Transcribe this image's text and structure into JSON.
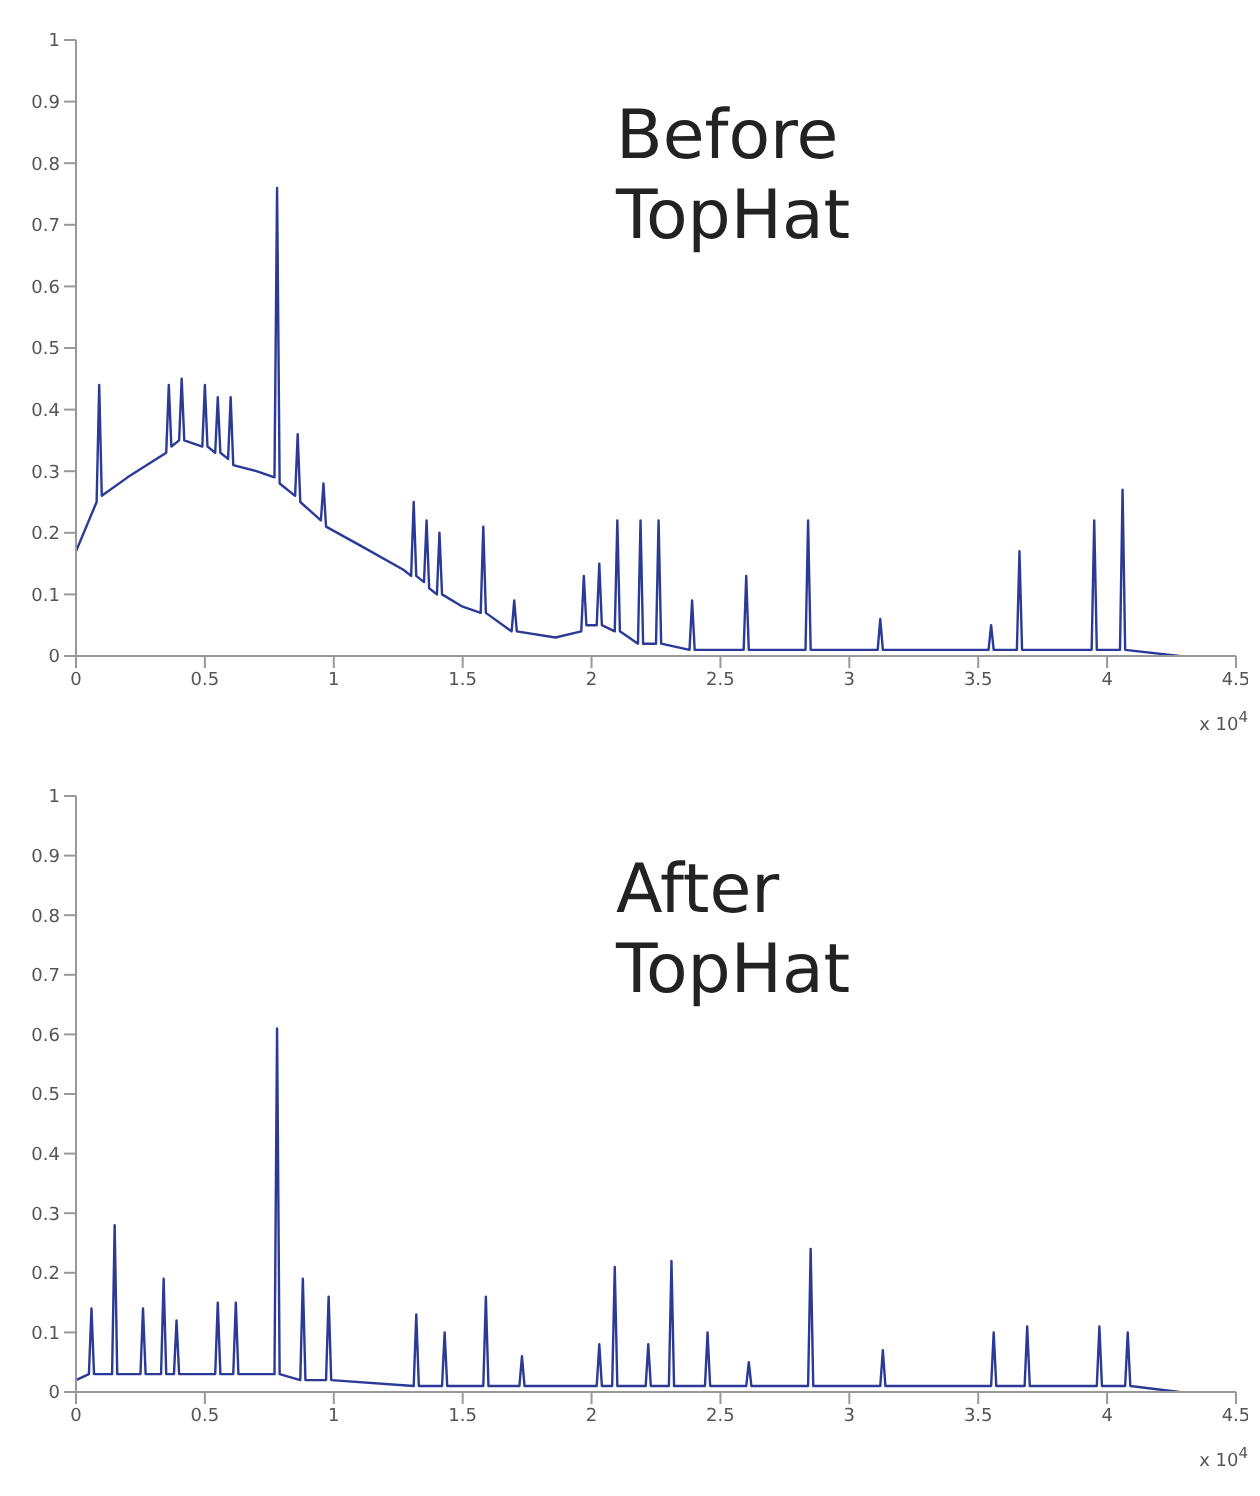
{
  "chart_data": [
    {
      "type": "line",
      "title": "Before TopHat",
      "xlim": [
        0,
        4.5
      ],
      "xticks": [
        0,
        0.5,
        1,
        1.5,
        2,
        2.5,
        3,
        3.5,
        4,
        4.5
      ],
      "ylim": [
        0,
        1
      ],
      "yticks": [
        0,
        0.1,
        0.2,
        0.3,
        0.4,
        0.5,
        0.6,
        0.7,
        0.8,
        0.9,
        1
      ],
      "annotations": [
        "x 10$^{4}$"
      ],
      "marker": "none",
      "grid": false,
      "legend": false,
      "series": [
        {
          "color": "#2b3a96",
          "x": [
            0,
            0.08,
            0.09,
            0.1,
            0.2,
            0.35,
            0.36,
            0.37,
            0.4,
            0.41,
            0.42,
            0.49,
            0.5,
            0.51,
            0.54,
            0.55,
            0.56,
            0.59,
            0.6,
            0.61,
            0.7,
            0.77,
            0.78,
            0.79,
            0.85,
            0.86,
            0.87,
            0.95,
            0.96,
            0.97,
            1.1,
            1.27,
            1.3,
            1.31,
            1.32,
            1.35,
            1.36,
            1.37,
            1.4,
            1.41,
            1.42,
            1.5,
            1.57,
            1.58,
            1.59,
            1.69,
            1.7,
            1.71,
            1.86,
            1.96,
            1.97,
            1.98,
            2.02,
            2.03,
            2.04,
            2.09,
            2.1,
            2.11,
            2.18,
            2.19,
            2.2,
            2.25,
            2.26,
            2.27,
            2.38,
            2.39,
            2.4,
            2.59,
            2.6,
            2.61,
            2.83,
            2.84,
            2.85,
            3.11,
            3.12,
            3.13,
            3.54,
            3.55,
            3.56,
            3.65,
            3.66,
            3.67,
            3.94,
            3.95,
            3.96,
            4.05,
            4.06,
            4.07,
            4.28
          ],
          "values": [
            0.17,
            0.25,
            0.44,
            0.26,
            0.29,
            0.33,
            0.44,
            0.34,
            0.35,
            0.45,
            0.35,
            0.34,
            0.44,
            0.34,
            0.33,
            0.42,
            0.33,
            0.32,
            0.42,
            0.31,
            0.3,
            0.29,
            0.76,
            0.28,
            0.26,
            0.36,
            0.25,
            0.22,
            0.28,
            0.21,
            0.18,
            0.14,
            0.13,
            0.25,
            0.13,
            0.12,
            0.22,
            0.11,
            0.1,
            0.2,
            0.1,
            0.08,
            0.07,
            0.21,
            0.07,
            0.04,
            0.09,
            0.04,
            0.03,
            0.04,
            0.13,
            0.05,
            0.05,
            0.15,
            0.05,
            0.04,
            0.22,
            0.04,
            0.02,
            0.22,
            0.02,
            0.02,
            0.22,
            0.02,
            0.01,
            0.09,
            0.01,
            0.01,
            0.13,
            0.01,
            0.01,
            0.22,
            0.01,
            0.01,
            0.06,
            0.01,
            0.01,
            0.05,
            0.01,
            0.01,
            0.17,
            0.01,
            0.01,
            0.22,
            0.01,
            0.01,
            0.27,
            0.01,
            0
          ]
        }
      ]
    },
    {
      "type": "line",
      "title": "After TopHat",
      "xlim": [
        0,
        4.5
      ],
      "xticks": [
        0,
        0.5,
        1,
        1.5,
        2,
        2.5,
        3,
        3.5,
        4,
        4.5
      ],
      "ylim": [
        0,
        1
      ],
      "yticks": [
        0,
        0.1,
        0.2,
        0.3,
        0.4,
        0.5,
        0.6,
        0.7,
        0.8,
        0.9,
        1
      ],
      "annotations": [
        "x 10$^{4}$"
      ],
      "marker": "none",
      "grid": false,
      "legend": false,
      "series": [
        {
          "color": "#2b3a96",
          "x": [
            0,
            0.05,
            0.06,
            0.07,
            0.14,
            0.15,
            0.16,
            0.25,
            0.26,
            0.27,
            0.33,
            0.34,
            0.35,
            0.38,
            0.39,
            0.4,
            0.54,
            0.55,
            0.56,
            0.61,
            0.62,
            0.63,
            0.77,
            0.78,
            0.79,
            0.87,
            0.88,
            0.89,
            0.97,
            0.98,
            0.99,
            1.31,
            1.32,
            1.33,
            1.42,
            1.43,
            1.44,
            1.58,
            1.59,
            1.6,
            1.72,
            1.73,
            1.74,
            2.02,
            2.03,
            2.04,
            2.08,
            2.09,
            2.1,
            2.21,
            2.22,
            2.23,
            2.3,
            2.31,
            2.32,
            2.44,
            2.45,
            2.46,
            2.6,
            2.61,
            2.62,
            2.84,
            2.85,
            2.86,
            3.12,
            3.13,
            3.14,
            3.55,
            3.56,
            3.57,
            3.68,
            3.69,
            3.7,
            3.96,
            3.97,
            3.98,
            4.07,
            4.08,
            4.09,
            4.28
          ],
          "values": [
            0.02,
            0.03,
            0.14,
            0.03,
            0.03,
            0.28,
            0.03,
            0.03,
            0.14,
            0.03,
            0.03,
            0.19,
            0.03,
            0.03,
            0.12,
            0.03,
            0.03,
            0.15,
            0.03,
            0.03,
            0.15,
            0.03,
            0.03,
            0.61,
            0.03,
            0.02,
            0.19,
            0.02,
            0.02,
            0.16,
            0.02,
            0.01,
            0.13,
            0.01,
            0.01,
            0.1,
            0.01,
            0.01,
            0.16,
            0.01,
            0.01,
            0.06,
            0.01,
            0.01,
            0.08,
            0.01,
            0.01,
            0.21,
            0.01,
            0.01,
            0.08,
            0.01,
            0.01,
            0.22,
            0.01,
            0.01,
            0.1,
            0.01,
            0.01,
            0.05,
            0.01,
            0.01,
            0.24,
            0.01,
            0.01,
            0.07,
            0.01,
            0.01,
            0.1,
            0.01,
            0.01,
            0.11,
            0.01,
            0.01,
            0.11,
            0.01,
            0.01,
            0.1,
            0.01,
            0
          ]
        }
      ]
    }
  ]
}
